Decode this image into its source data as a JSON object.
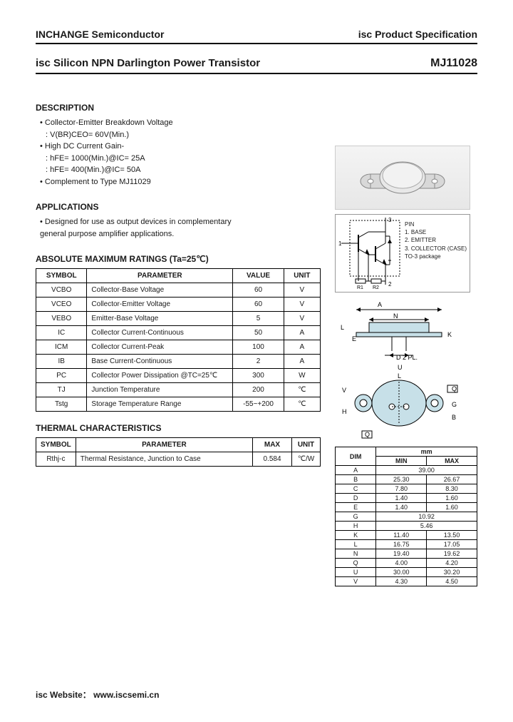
{
  "header": {
    "company": "INCHANGE Semiconductor",
    "spec": "isc Product Specification"
  },
  "title": {
    "product": "isc Silicon NPN Darlington Power Transistor",
    "part_no": "MJ11028"
  },
  "description": {
    "heading": "DESCRIPTION",
    "items": [
      {
        "text": "• Collector-Emitter Breakdown Voltage",
        "sub": ": V(BR)CEO= 60V(Min.)"
      },
      {
        "text": "• High DC Current Gain-",
        "sub": ": hFE= 1000(Min.)@IC= 25A"
      },
      {
        "text": "",
        "sub": ": hFE= 400(Min.)@IC= 50A"
      },
      {
        "text": "• Complement to Type MJ11029",
        "sub": ""
      }
    ]
  },
  "applications": {
    "heading": "APPLICATIONS",
    "items": [
      "• Designed for use as output devices in complementary",
      "  general purpose amplifier applications."
    ]
  },
  "pinout": {
    "heading": "PIN",
    "pins": [
      "1. BASE",
      "2. EMITTER",
      "3. COLLECTOR (CASE)"
    ],
    "pkg": "TO-3 package"
  },
  "ratings": {
    "heading": "ABSOLUTE MAXIMUM RATINGS (Ta=25℃)",
    "columns": [
      "SYMBOL",
      "PARAMETER",
      "VALUE",
      "UNIT"
    ],
    "rows": [
      [
        "VCBO",
        "Collector-Base Voltage",
        "60",
        "V"
      ],
      [
        "VCEO",
        "Collector-Emitter Voltage",
        "60",
        "V"
      ],
      [
        "VEBO",
        "Emitter-Base Voltage",
        "5",
        "V"
      ],
      [
        "IC",
        "Collector Current-Continuous",
        "50",
        "A"
      ],
      [
        "ICM",
        "Collector Current-Peak",
        "100",
        "A"
      ],
      [
        "IB",
        "Base Current-Continuous",
        "2",
        "A"
      ],
      [
        "PC",
        "Collector Power Dissipation @TC=25℃",
        "300",
        "W"
      ],
      [
        "TJ",
        "Junction Temperature",
        "200",
        "℃"
      ],
      [
        "Tstg",
        "Storage Temperature Range",
        "-55~+200",
        "℃"
      ]
    ]
  },
  "thermal": {
    "heading": "THERMAL CHARACTERISTICS",
    "columns": [
      "SYMBOL",
      "PARAMETER",
      "MAX",
      "UNIT"
    ],
    "rows": [
      [
        "Rthj-c",
        "Thermal Resistance, Junction to Case",
        "0.584",
        "℃/W"
      ]
    ]
  },
  "dimensions": {
    "header_unit": "mm",
    "columns": [
      "DIM",
      "MIN",
      "MAX"
    ],
    "rows": [
      [
        "A",
        "39.00",
        ""
      ],
      [
        "B",
        "25.30",
        "26.67"
      ],
      [
        "C",
        "7.80",
        "8.30"
      ],
      [
        "D",
        "1.40",
        "1.60"
      ],
      [
        "E",
        "1.40",
        "1.60"
      ],
      [
        "G",
        "10.92",
        ""
      ],
      [
        "H",
        "5.46",
        ""
      ],
      [
        "K",
        "11.40",
        "13.50"
      ],
      [
        "L",
        "16.75",
        "17.05"
      ],
      [
        "N",
        "19.40",
        "19.62"
      ],
      [
        "Q",
        "4.00",
        "4.20"
      ],
      [
        "U",
        "30.00",
        "30.20"
      ],
      [
        "V",
        "4.30",
        "4.50"
      ]
    ]
  },
  "drawing_labels": {
    "d2pl": "D 2 PL."
  },
  "footer": {
    "website_label": "isc Website：",
    "website": "www.iscsemi.cn"
  }
}
